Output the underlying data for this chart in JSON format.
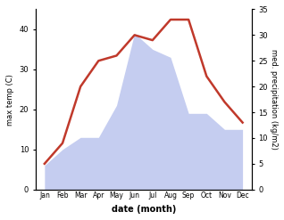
{
  "months": [
    "Jan",
    "Feb",
    "Mar",
    "Apr",
    "May",
    "Jun",
    "Jul",
    "Aug",
    "Sep",
    "Oct",
    "Nov",
    "Dec"
  ],
  "temp": [
    6,
    10,
    13,
    13,
    21,
    39,
    35,
    33,
    19,
    19,
    15,
    15
  ],
  "precip": [
    5,
    9,
    20,
    25,
    26,
    30,
    29,
    33,
    33,
    22,
    17,
    13
  ],
  "temp_color": "#c0392b",
  "precip_fill_color": "#c5cdf0",
  "temp_ylim": [
    0,
    45
  ],
  "precip_ylim": [
    0,
    35
  ],
  "temp_yticks": [
    0,
    10,
    20,
    30,
    40
  ],
  "precip_yticks": [
    0,
    5,
    10,
    15,
    20,
    25,
    30,
    35
  ],
  "xlabel": "date (month)",
  "ylabel_left": "max temp (C)",
  "ylabel_right": "med. precipitation (kg/m2)"
}
